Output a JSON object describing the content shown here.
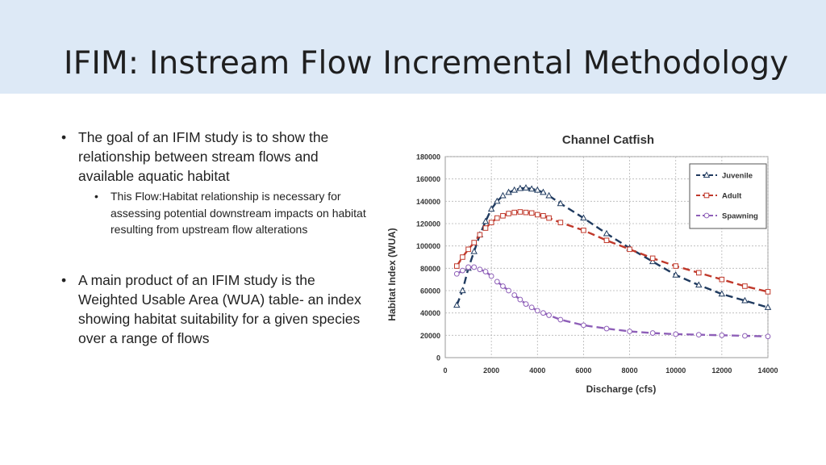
{
  "slide": {
    "title": "IFIM: Instream Flow Incremental Methodology",
    "bullets": [
      {
        "text": "The goal of an IFIM study is to show the relationship between stream flows and available aquatic habitat",
        "sub": [
          "This Flow:Habitat relationship is necessary for assessing potential downstream impacts on habitat resulting from upstream flow alterations"
        ]
      },
      {
        "text": "A main product of an IFIM study is the Weighted Usable Area (WUA) table- an index showing habitat suitability for a given species over a range of flows",
        "sub": []
      }
    ],
    "bullet_glyph": "•"
  },
  "chart_data": {
    "type": "line",
    "title": "Channel Catfish",
    "xlabel": "Discharge (cfs)",
    "ylabel": "Habitat Index (WUA)",
    "xlim": [
      0,
      14000
    ],
    "ylim": [
      0,
      180000
    ],
    "xticks": [
      0,
      2000,
      4000,
      6000,
      8000,
      10000,
      12000,
      14000
    ],
    "yticks": [
      0,
      20000,
      40000,
      60000,
      80000,
      100000,
      120000,
      140000,
      160000,
      180000
    ],
    "grid": true,
    "legend_position": "top-right",
    "series": [
      {
        "name": "Juvenile",
        "color": "#1f3a5f",
        "marker": "triangle",
        "points": [
          [
            500,
            47000
          ],
          [
            750,
            60000
          ],
          [
            1000,
            80000
          ],
          [
            1250,
            95000
          ],
          [
            1500,
            110000
          ],
          [
            1750,
            122000
          ],
          [
            2000,
            133000
          ],
          [
            2250,
            140000
          ],
          [
            2500,
            145000
          ],
          [
            2750,
            148000
          ],
          [
            3000,
            150000
          ],
          [
            3250,
            151500
          ],
          [
            3500,
            152000
          ],
          [
            3750,
            151000
          ],
          [
            4000,
            150000
          ],
          [
            4250,
            148000
          ],
          [
            4500,
            145000
          ],
          [
            5000,
            138000
          ],
          [
            6000,
            125000
          ],
          [
            7000,
            111000
          ],
          [
            8000,
            98000
          ],
          [
            9000,
            86000
          ],
          [
            10000,
            74000
          ],
          [
            11000,
            65000
          ],
          [
            12000,
            57000
          ],
          [
            13000,
            51000
          ],
          [
            14000,
            45000
          ]
        ]
      },
      {
        "name": "Adult",
        "color": "#c0392b",
        "marker": "square",
        "points": [
          [
            500,
            82000
          ],
          [
            750,
            90000
          ],
          [
            1000,
            97000
          ],
          [
            1250,
            103000
          ],
          [
            1500,
            110000
          ],
          [
            1750,
            116000
          ],
          [
            2000,
            121000
          ],
          [
            2250,
            125000
          ],
          [
            2500,
            127000
          ],
          [
            2750,
            129000
          ],
          [
            3000,
            130000
          ],
          [
            3250,
            130500
          ],
          [
            3500,
            130000
          ],
          [
            3750,
            129500
          ],
          [
            4000,
            128000
          ],
          [
            4250,
            127000
          ],
          [
            4500,
            125000
          ],
          [
            5000,
            121000
          ],
          [
            6000,
            114000
          ],
          [
            7000,
            105000
          ],
          [
            8000,
            97000
          ],
          [
            9000,
            89000
          ],
          [
            10000,
            82000
          ],
          [
            11000,
            76000
          ],
          [
            12000,
            70000
          ],
          [
            13000,
            64000
          ],
          [
            14000,
            59000
          ]
        ]
      },
      {
        "name": "Spawning",
        "color": "#8e5fb8",
        "marker": "circle",
        "points": [
          [
            500,
            75000
          ],
          [
            750,
            78000
          ],
          [
            1000,
            81000
          ],
          [
            1250,
            81000
          ],
          [
            1500,
            79000
          ],
          [
            1750,
            77000
          ],
          [
            2000,
            73000
          ],
          [
            2250,
            68000
          ],
          [
            2500,
            64000
          ],
          [
            2750,
            60000
          ],
          [
            3000,
            56000
          ],
          [
            3250,
            52000
          ],
          [
            3500,
            48000
          ],
          [
            3750,
            45000
          ],
          [
            4000,
            42000
          ],
          [
            4250,
            40000
          ],
          [
            4500,
            38000
          ],
          [
            5000,
            34000
          ],
          [
            6000,
            29000
          ],
          [
            7000,
            26000
          ],
          [
            8000,
            23500
          ],
          [
            9000,
            22000
          ],
          [
            10000,
            21000
          ],
          [
            11000,
            20500
          ],
          [
            12000,
            20000
          ],
          [
            13000,
            19500
          ],
          [
            14000,
            19000
          ]
        ]
      }
    ]
  }
}
